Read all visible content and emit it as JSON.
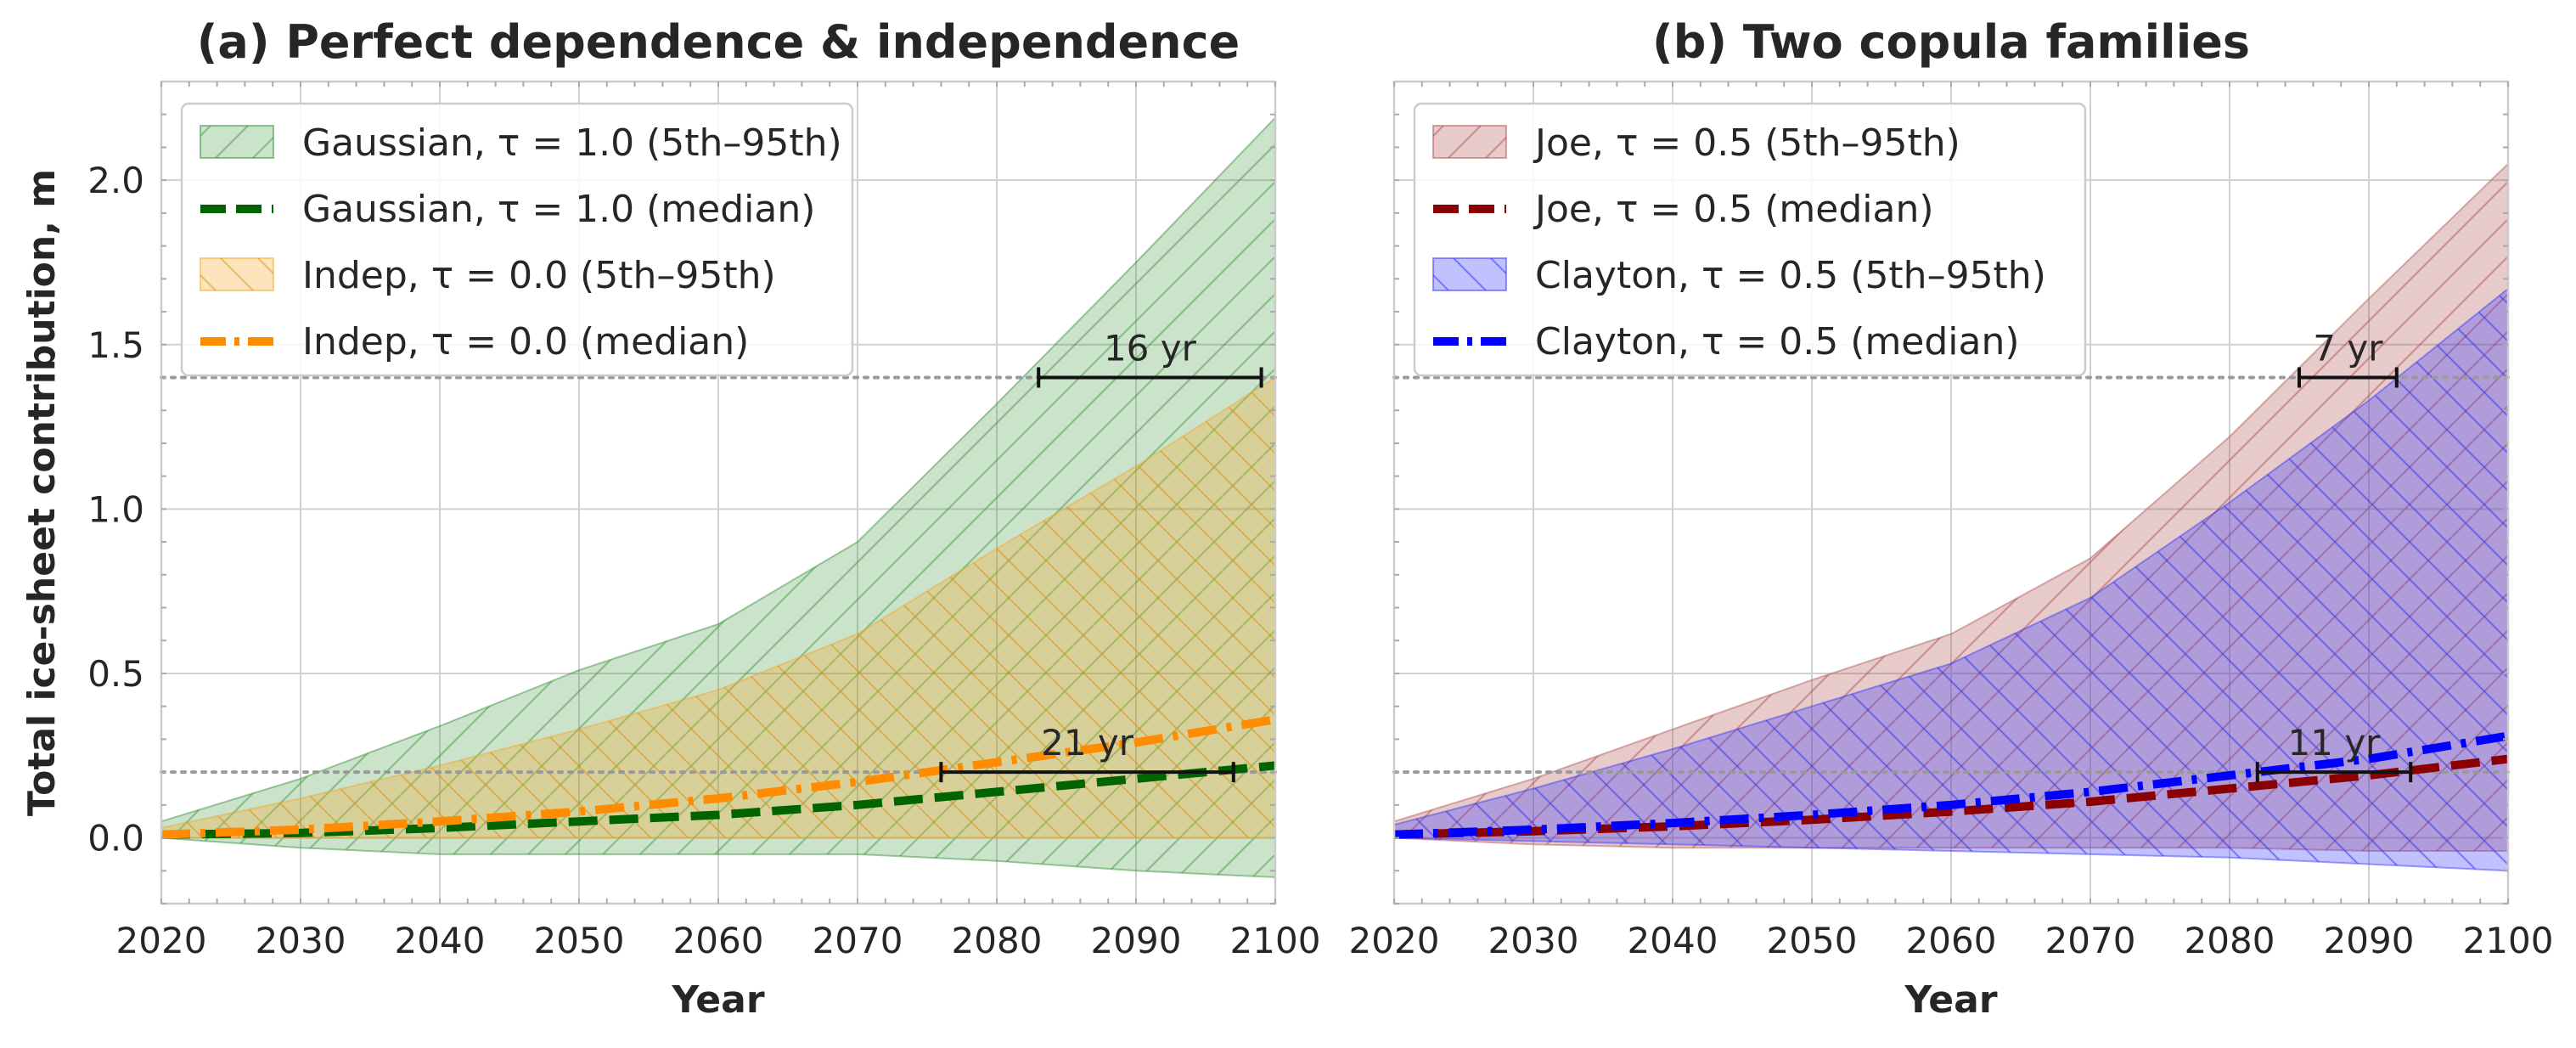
{
  "chart_data": [
    {
      "type": "area",
      "title": "(a) Perfect dependence & independence",
      "xlabel": "Year",
      "ylabel": "Total ice-sheet contribution, m",
      "xlim": [
        2020,
        2100
      ],
      "ylim": [
        -0.2,
        2.3
      ],
      "x_ticks": [
        "2020",
        "2030",
        "2040",
        "2050",
        "2060",
        "2070",
        "2080",
        "2090",
        "2100"
      ],
      "y_ticks": [
        "0.0",
        "0.5",
        "1.0",
        "1.5",
        "2.0"
      ],
      "grid": true,
      "legend_position": "top-left",
      "x": [
        2020,
        2030,
        2040,
        2050,
        2060,
        2070,
        2080,
        2090,
        2100
      ],
      "bands": [
        {
          "name": "Gaussian, τ = 1.0 (5th–95th)",
          "color": "#2e8b2e",
          "hatch": "/",
          "lower": [
            0.0,
            -0.03,
            -0.05,
            -0.05,
            -0.05,
            -0.05,
            -0.07,
            -0.1,
            -0.12
          ],
          "upper": [
            0.05,
            0.18,
            0.34,
            0.51,
            0.65,
            0.9,
            1.32,
            1.75,
            2.19
          ]
        },
        {
          "name": "Indep, τ = 0.0 (5th–95th)",
          "color": "#f5a623",
          "hatch": "\\",
          "lower": [
            0.0,
            0.0,
            0.0,
            0.0,
            0.0,
            0.0,
            0.0,
            0.0,
            0.0
          ],
          "upper": [
            0.03,
            0.12,
            0.22,
            0.33,
            0.45,
            0.62,
            0.88,
            1.13,
            1.4
          ]
        }
      ],
      "series": [
        {
          "name": "Gaussian, τ = 1.0 (median)",
          "color": "#006400",
          "dash": "dashed",
          "values": [
            0.01,
            0.015,
            0.03,
            0.05,
            0.07,
            0.1,
            0.14,
            0.18,
            0.22
          ]
        },
        {
          "name": "Indep, τ = 0.0 (median)",
          "color": "#ff8c00",
          "dash": "dashdot",
          "values": [
            0.01,
            0.025,
            0.05,
            0.08,
            0.12,
            0.17,
            0.23,
            0.29,
            0.36
          ]
        }
      ],
      "reference_lines": [
        1.4,
        0.2
      ],
      "annotations": [
        {
          "label": "16 yr",
          "x_start": 2083,
          "x_end": 2099,
          "y": 1.4
        },
        {
          "label": "21 yr",
          "x_start": 2076,
          "x_end": 2097,
          "y": 0.2
        }
      ]
    },
    {
      "type": "area",
      "title": "(b) Two copula families",
      "xlabel": "Year",
      "ylabel": "",
      "xlim": [
        2020,
        2100
      ],
      "ylim": [
        -0.2,
        2.3
      ],
      "x_ticks": [
        "2020",
        "2030",
        "2040",
        "2050",
        "2060",
        "2070",
        "2080",
        "2090",
        "2100"
      ],
      "y_ticks": [],
      "grid": true,
      "legend_position": "top-left",
      "x": [
        2020,
        2030,
        2040,
        2050,
        2060,
        2070,
        2080,
        2090,
        2100
      ],
      "bands": [
        {
          "name": "Joe, τ = 0.5 (5th–95th)",
          "color": "#b05050",
          "hatch": "/",
          "lower": [
            0.0,
            -0.02,
            -0.03,
            -0.03,
            -0.03,
            -0.03,
            -0.03,
            -0.04,
            -0.04
          ],
          "upper": [
            0.05,
            0.18,
            0.33,
            0.48,
            0.62,
            0.85,
            1.22,
            1.64,
            2.05
          ]
        },
        {
          "name": "Clayton, τ = 0.5 (5th–95th)",
          "color": "#3333ff",
          "hatch": "\\",
          "lower": [
            0.0,
            -0.01,
            -0.02,
            -0.03,
            -0.04,
            -0.05,
            -0.06,
            -0.08,
            -0.1
          ],
          "upper": [
            0.04,
            0.15,
            0.27,
            0.4,
            0.53,
            0.73,
            1.02,
            1.33,
            1.67
          ]
        }
      ],
      "series": [
        {
          "name": "Joe, τ = 0.5 (median)",
          "color": "#8b0000",
          "dash": "dashed",
          "values": [
            0.01,
            0.02,
            0.035,
            0.055,
            0.08,
            0.11,
            0.15,
            0.19,
            0.24
          ]
        },
        {
          "name": "Clayton, τ = 0.5 (median)",
          "color": "#0000ff",
          "dash": "dashdot",
          "values": [
            0.01,
            0.025,
            0.045,
            0.07,
            0.1,
            0.14,
            0.19,
            0.24,
            0.31
          ]
        }
      ],
      "reference_lines": [
        1.4,
        0.2
      ],
      "annotations": [
        {
          "label": "7 yr",
          "x_start": 2085,
          "x_end": 2092,
          "y": 1.4
        },
        {
          "label": "11 yr",
          "x_start": 2082,
          "x_end": 2093,
          "y": 0.2
        }
      ]
    }
  ]
}
